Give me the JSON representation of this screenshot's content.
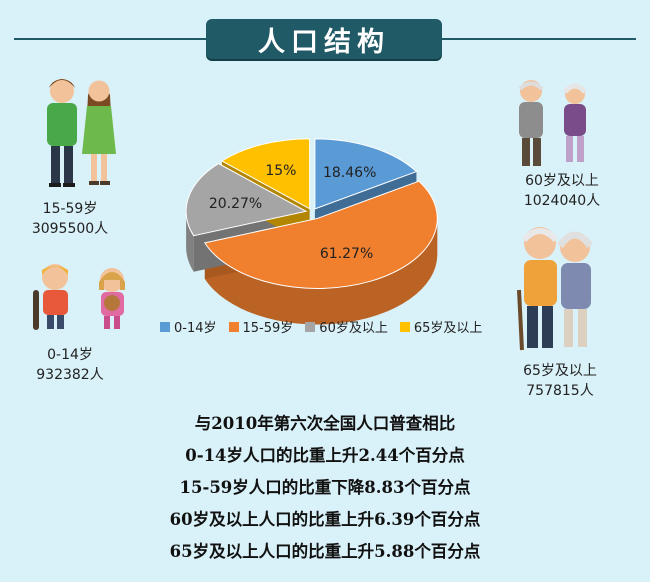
{
  "title": "人口结构",
  "groups": [
    {
      "age": "15-59岁",
      "count": "3095500人"
    },
    {
      "age": "0-14岁",
      "count": "932382人"
    },
    {
      "age": "60岁及以上",
      "count": "1024040人"
    },
    {
      "age": "65岁及以上",
      "count": "757815人"
    }
  ],
  "chart_data": {
    "type": "pie",
    "title": "",
    "slices": [
      {
        "name": "0-14岁",
        "value": 18.46,
        "label": "18.46%",
        "color": "#5b9bd5"
      },
      {
        "name": "15-59岁",
        "value": 61.27,
        "label": "61.27%",
        "color": "#f07f2e"
      },
      {
        "name": "60岁及以上",
        "value": 20.27,
        "label": "20.27%",
        "color": "#a5a5a5"
      },
      {
        "name": "65岁及以上",
        "value": 15,
        "label": "15%",
        "color": "#ffc000"
      }
    ],
    "legend": {
      "placement": "bottom"
    }
  },
  "notes": [
    "与2010年第六次全国人口普查相比",
    "0-14岁人口的比重上升2.44个百分点",
    "15-59岁人口的比重下降8.83个百分点",
    "60岁及以上人口的比重上升6.39个百分点",
    "65岁及以上人口的比重上升5.88个百分点"
  ]
}
